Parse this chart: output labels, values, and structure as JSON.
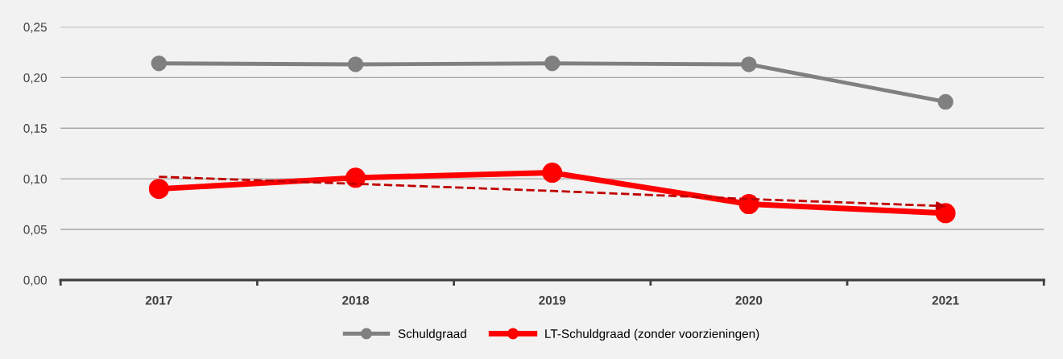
{
  "chart_data": {
    "type": "line",
    "categories": [
      "2017",
      "2018",
      "2019",
      "2020",
      "2021"
    ],
    "series": [
      {
        "name": "Schuldgraad",
        "color": "#808080",
        "values": [
          0.214,
          0.213,
          0.214,
          0.213,
          0.176
        ]
      },
      {
        "name": "LT-Schuldgraad (zonder voorzieningen)",
        "color": "#ff0000",
        "values": [
          0.09,
          0.101,
          0.106,
          0.075,
          0.066
        ]
      },
      {
        "color": "#c00000",
        "line_style": "dashed",
        "marker": "none",
        "values": [
          0.102,
          0.095,
          0.088,
          0.08,
          0.073
        ]
      }
    ],
    "ylim": [
      0,
      0.25
    ],
    "yticks": [
      {
        "value": 0,
        "label": "0,00"
      },
      {
        "value": 0.05,
        "label": "0,05"
      },
      {
        "value": 0.1,
        "label": "0,10"
      },
      {
        "value": 0.15,
        "label": "0,15"
      },
      {
        "value": 0.2,
        "label": "0,20"
      },
      {
        "value": 0.25,
        "label": "0,25"
      }
    ],
    "grid": "y",
    "legend": "bottom",
    "marker": "circle",
    "line_style": "solid"
  }
}
